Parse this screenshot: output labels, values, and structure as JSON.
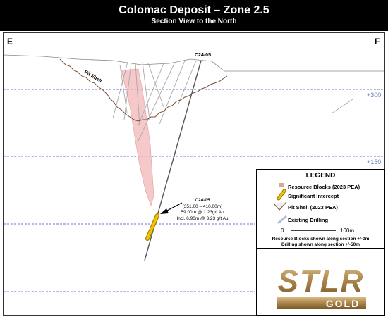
{
  "header": {
    "title": "Colomac Deposit – Zone 2.5",
    "subtitle": "Section View to the North"
  },
  "corners": {
    "left": "E",
    "right": "F"
  },
  "section": {
    "hole_label": "C24-05",
    "pit_label": "Pit Shell",
    "elevations": [
      "+300",
      "+150"
    ]
  },
  "annotation": {
    "hole": "C24-05",
    "interval": "(351.00 – 410.00m)",
    "line1": "59.00m @ 1.23g/t Au",
    "line2": "Incl. 6.90m @ 3.23 g/t Au"
  },
  "legend": {
    "title": "LEGEND",
    "items": [
      {
        "label": "Resource Blocks (2023 PEA)",
        "icon": "resource-blocks-swatch",
        "color": "#d9a88e"
      },
      {
        "label": "Significant Intercept",
        "icon": "intercept-swatch",
        "color": "#e8b400"
      },
      {
        "label": "Pit Shell (2023 PEA)",
        "icon": "pit-shell-swatch",
        "color": "#7b4a2e"
      },
      {
        "label": "Existing Drilling",
        "icon": "drilling-swatch",
        "color": "#b8bcd8"
      }
    ],
    "scale_start": "0",
    "scale_end": "100m",
    "note1": "Resource Blocks shown along section +/-0m",
    "note2": "Drilling shown along section +/-50m"
  },
  "logo": {
    "main": "STLR",
    "sub": "GOLD",
    "color": "#b8965a"
  }
}
